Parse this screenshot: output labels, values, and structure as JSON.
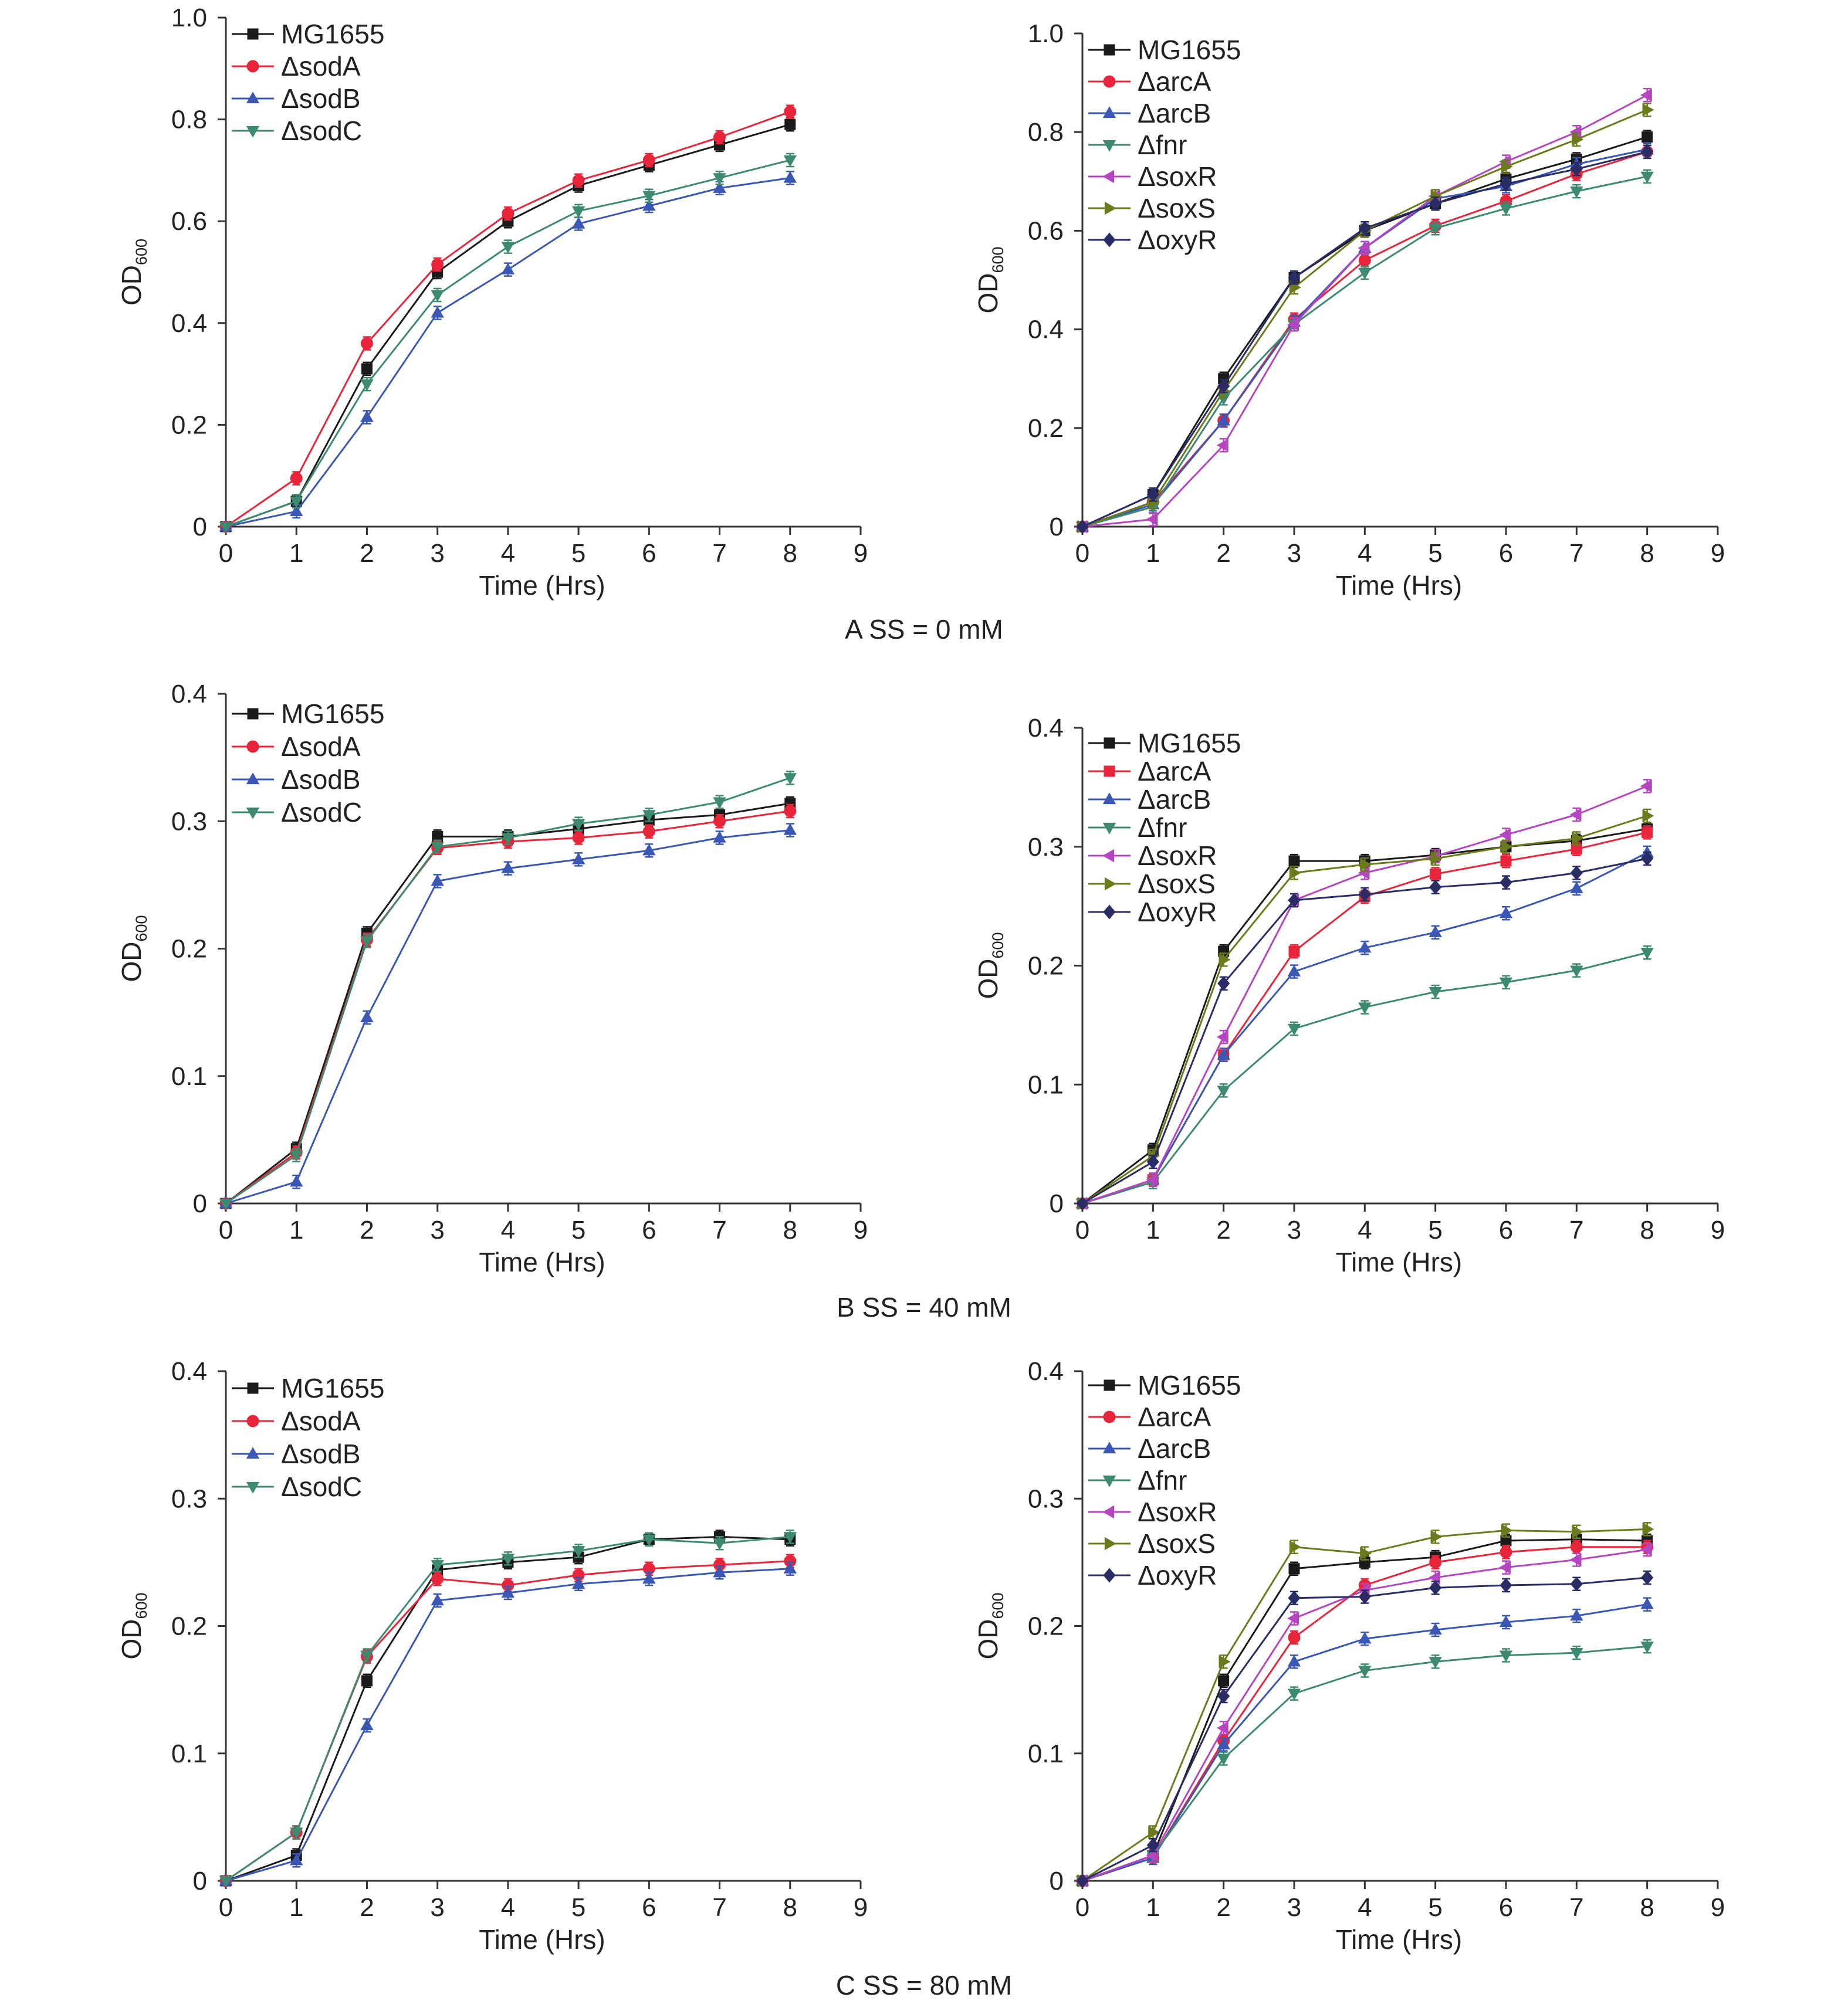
{
  "figure": {
    "captions": [
      "A SS = 0 mM",
      "B SS = 40 mM",
      "C SS = 80 mM"
    ]
  },
  "axes_text": {
    "xlabel": "Time (Hrs)",
    "ylabel_main": "OD",
    "ylabel_sub": "600"
  },
  "chart_data": [
    {
      "id": "A-left",
      "type": "line",
      "panel": "A",
      "xlabel": "Time (Hrs)",
      "ylabel": "OD600",
      "xlim": [
        0,
        9
      ],
      "ylim": [
        0,
        1.0
      ],
      "xticks": [
        0,
        1,
        2,
        3,
        4,
        5,
        6,
        7,
        8,
        9
      ],
      "yticks": [
        0,
        0.2,
        0.4,
        0.6,
        0.8,
        1.0
      ],
      "ytick_labels": [
        "0",
        "0.2",
        "0.4",
        "0.6",
        "0.8",
        "1.0"
      ],
      "grid": false,
      "legend": "top-left",
      "x": [
        0,
        1,
        2,
        3,
        4,
        5,
        6,
        7,
        8
      ],
      "series": [
        {
          "name": "MG1655",
          "color": "#1a1a1a",
          "marker": "square",
          "values": [
            0,
            0.05,
            0.31,
            0.5,
            0.6,
            0.67,
            0.71,
            0.75,
            0.79
          ]
        },
        {
          "name": "ΔsodA",
          "color": "#e8253a",
          "marker": "circle",
          "values": [
            0,
            0.095,
            0.36,
            0.515,
            0.615,
            0.68,
            0.72,
            0.765,
            0.815
          ]
        },
        {
          "name": "ΔsodB",
          "color": "#3a57b5",
          "marker": "triangle-up",
          "values": [
            0,
            0.03,
            0.215,
            0.42,
            0.505,
            0.595,
            0.63,
            0.665,
            0.685
          ]
        },
        {
          "name": "ΔsodC",
          "color": "#3e8a6e",
          "marker": "triangle-down",
          "values": [
            0,
            0.05,
            0.28,
            0.455,
            0.55,
            0.62,
            0.65,
            0.685,
            0.72
          ]
        }
      ]
    },
    {
      "id": "A-right",
      "type": "line",
      "panel": "A",
      "xlabel": "Time (Hrs)",
      "ylabel": "OD600",
      "xlim": [
        0,
        9
      ],
      "ylim": [
        0,
        1.0
      ],
      "xticks": [
        0,
        1,
        2,
        3,
        4,
        5,
        6,
        7,
        8,
        9
      ],
      "yticks": [
        0,
        0.2,
        0.4,
        0.6,
        0.8,
        1.0
      ],
      "ytick_labels": [
        "0",
        "0.2",
        "0.4",
        "0.6",
        "0.8",
        "1.0"
      ],
      "grid": false,
      "legend": "top-left",
      "x": [
        0,
        1,
        2,
        3,
        4,
        5,
        6,
        7,
        8
      ],
      "series": [
        {
          "name": "MG1655",
          "color": "#1a1a1a",
          "marker": "square",
          "values": [
            0,
            0.065,
            0.3,
            0.505,
            0.6,
            0.655,
            0.705,
            0.745,
            0.79
          ]
        },
        {
          "name": "ΔarcA",
          "color": "#e8253a",
          "marker": "circle",
          "values": [
            0,
            0.05,
            0.215,
            0.42,
            0.54,
            0.61,
            0.66,
            0.715,
            0.76
          ]
        },
        {
          "name": "ΔarcB",
          "color": "#3a57b5",
          "marker": "triangle-up",
          "values": [
            0,
            0.045,
            0.215,
            0.415,
            0.565,
            0.665,
            0.69,
            0.735,
            0.765
          ]
        },
        {
          "name": "Δfnr",
          "color": "#3e8a6e",
          "marker": "triangle-down",
          "values": [
            0,
            0.04,
            0.26,
            0.41,
            0.515,
            0.605,
            0.645,
            0.68,
            0.71
          ]
        },
        {
          "name": "ΔsoxR",
          "color": "#b545c0",
          "marker": "triangle-left",
          "values": [
            0,
            0.015,
            0.165,
            0.41,
            0.565,
            0.67,
            0.74,
            0.8,
            0.875
          ]
        },
        {
          "name": "ΔsoxS",
          "color": "#6d7a1c",
          "marker": "triangle-right",
          "values": [
            0,
            0.05,
            0.275,
            0.485,
            0.6,
            0.67,
            0.73,
            0.785,
            0.845
          ]
        },
        {
          "name": "ΔoxyR",
          "color": "#2a2c66",
          "marker": "diamond",
          "values": [
            0,
            0.065,
            0.285,
            0.505,
            0.605,
            0.655,
            0.695,
            0.725,
            0.76
          ]
        }
      ]
    },
    {
      "id": "B-left",
      "type": "line",
      "panel": "B",
      "xlabel": "Time (Hrs)",
      "ylabel": "OD600",
      "xlim": [
        0,
        9
      ],
      "ylim": [
        0,
        0.4
      ],
      "xticks": [
        0,
        1,
        2,
        3,
        4,
        5,
        6,
        7,
        8,
        9
      ],
      "yticks": [
        0,
        0.1,
        0.2,
        0.3,
        0.4
      ],
      "ytick_labels": [
        "0",
        "0.1",
        "0.2",
        "0.3",
        "0.4"
      ],
      "grid": false,
      "legend": "top-left",
      "x": [
        0,
        1,
        2,
        3,
        4,
        5,
        6,
        7,
        8
      ],
      "series": [
        {
          "name": "MG1655",
          "color": "#1a1a1a",
          "marker": "square",
          "values": [
            0,
            0.043,
            0.212,
            0.288,
            0.288,
            0.294,
            0.301,
            0.305,
            0.314
          ]
        },
        {
          "name": "ΔsodA",
          "color": "#e8253a",
          "marker": "circle",
          "values": [
            0,
            0.04,
            0.207,
            0.279,
            0.284,
            0.287,
            0.292,
            0.3,
            0.308
          ]
        },
        {
          "name": "ΔsodB",
          "color": "#3a57b5",
          "marker": "triangle-up",
          "values": [
            0,
            0.017,
            0.146,
            0.253,
            0.263,
            0.27,
            0.277,
            0.287,
            0.293
          ]
        },
        {
          "name": "ΔsodC",
          "color": "#3e8a6e",
          "marker": "triangle-down",
          "values": [
            0,
            0.038,
            0.206,
            0.28,
            0.287,
            0.298,
            0.305,
            0.315,
            0.334
          ]
        }
      ]
    },
    {
      "id": "B-right",
      "type": "line",
      "panel": "B",
      "xlabel": "Time (Hrs)",
      "ylabel": "OD600",
      "xlim": [
        0,
        9
      ],
      "ylim": [
        0,
        0.4
      ],
      "xticks": [
        0,
        1,
        2,
        3,
        4,
        5,
        6,
        7,
        8,
        9
      ],
      "yticks": [
        0,
        0.1,
        0.2,
        0.3,
        0.4
      ],
      "ytick_labels": [
        "0",
        "0.1",
        "0.2",
        "0.3",
        "0.4"
      ],
      "grid": false,
      "legend": "top-left",
      "x": [
        0,
        1,
        2,
        3,
        4,
        5,
        6,
        7,
        8
      ],
      "series": [
        {
          "name": "MG1655",
          "color": "#1a1a1a",
          "marker": "square",
          "values": [
            0,
            0.045,
            0.212,
            0.288,
            0.288,
            0.293,
            0.3,
            0.305,
            0.315
          ]
        },
        {
          "name": "ΔarcA",
          "color": "#e8253a",
          "marker": "square",
          "values": [
            0,
            0.02,
            0.125,
            0.212,
            0.258,
            0.277,
            0.288,
            0.298,
            0.312
          ]
        },
        {
          "name": "ΔarcB",
          "color": "#3a57b5",
          "marker": "triangle-up",
          "values": [
            0,
            0.02,
            0.125,
            0.195,
            0.215,
            0.228,
            0.244,
            0.265,
            0.295
          ]
        },
        {
          "name": "Δfnr",
          "color": "#3e8a6e",
          "marker": "triangle-down",
          "values": [
            0,
            0.018,
            0.095,
            0.147,
            0.165,
            0.178,
            0.186,
            0.196,
            0.211
          ]
        },
        {
          "name": "ΔsoxR",
          "color": "#b545c0",
          "marker": "triangle-left",
          "values": [
            0,
            0.02,
            0.14,
            0.255,
            0.278,
            0.292,
            0.31,
            0.327,
            0.351
          ]
        },
        {
          "name": "ΔsoxS",
          "color": "#6d7a1c",
          "marker": "triangle-right",
          "values": [
            0,
            0.04,
            0.205,
            0.278,
            0.285,
            0.29,
            0.3,
            0.307,
            0.326
          ]
        },
        {
          "name": "ΔoxyR",
          "color": "#2a2c66",
          "marker": "diamond",
          "values": [
            0,
            0.035,
            0.185,
            0.255,
            0.26,
            0.266,
            0.27,
            0.278,
            0.29
          ]
        }
      ]
    },
    {
      "id": "C-left",
      "type": "line",
      "panel": "C",
      "xlabel": "Time (Hrs)",
      "ylabel": "OD600",
      "xlim": [
        0,
        9
      ],
      "ylim": [
        0,
        0.4
      ],
      "xticks": [
        0,
        1,
        2,
        3,
        4,
        5,
        6,
        7,
        8,
        9
      ],
      "yticks": [
        0,
        0.1,
        0.2,
        0.3,
        0.4
      ],
      "ytick_labels": [
        "0",
        "0.1",
        "0.2",
        "0.3",
        "0.4"
      ],
      "grid": false,
      "legend": "top-left",
      "x": [
        0,
        1,
        2,
        3,
        4,
        5,
        6,
        7,
        8
      ],
      "series": [
        {
          "name": "MG1655",
          "color": "#1a1a1a",
          "marker": "square",
          "values": [
            0,
            0.02,
            0.157,
            0.244,
            0.25,
            0.254,
            0.268,
            0.27,
            0.268
          ]
        },
        {
          "name": "ΔsodA",
          "color": "#e8253a",
          "marker": "circle",
          "values": [
            0,
            0.038,
            0.176,
            0.237,
            0.232,
            0.24,
            0.245,
            0.248,
            0.251
          ]
        },
        {
          "name": "ΔsodB",
          "color": "#3a57b5",
          "marker": "triangle-up",
          "values": [
            0,
            0.016,
            0.122,
            0.22,
            0.226,
            0.233,
            0.237,
            0.242,
            0.245
          ]
        },
        {
          "name": "ΔsodC",
          "color": "#3e8a6e",
          "marker": "triangle-down",
          "values": [
            0,
            0.038,
            0.177,
            0.248,
            0.253,
            0.259,
            0.268,
            0.265,
            0.27
          ]
        }
      ]
    },
    {
      "id": "C-right",
      "type": "line",
      "panel": "C",
      "xlabel": "Time (Hrs)",
      "ylabel": "OD600",
      "xlim": [
        0,
        9
      ],
      "ylim": [
        0,
        0.4
      ],
      "xticks": [
        0,
        1,
        2,
        3,
        4,
        5,
        6,
        7,
        8,
        9
      ],
      "yticks": [
        0,
        0.1,
        0.2,
        0.3,
        0.4
      ],
      "ytick_labels": [
        "0",
        "0.1",
        "0.2",
        "0.3",
        "0.4"
      ],
      "grid": false,
      "legend": "top-left",
      "x": [
        0,
        1,
        2,
        3,
        4,
        5,
        6,
        7,
        8
      ],
      "series": [
        {
          "name": "MG1655",
          "color": "#1a1a1a",
          "marker": "square",
          "values": [
            0,
            0.02,
            0.157,
            0.245,
            0.25,
            0.254,
            0.267,
            0.268,
            0.267
          ]
        },
        {
          "name": "ΔarcA",
          "color": "#e8253a",
          "marker": "circle",
          "values": [
            0,
            0.018,
            0.11,
            0.191,
            0.232,
            0.25,
            0.258,
            0.262,
            0.262
          ]
        },
        {
          "name": "ΔarcB",
          "color": "#3a57b5",
          "marker": "triangle-up",
          "values": [
            0,
            0.018,
            0.107,
            0.172,
            0.19,
            0.197,
            0.203,
            0.208,
            0.217
          ]
        },
        {
          "name": "Δfnr",
          "color": "#3e8a6e",
          "marker": "triangle-down",
          "values": [
            0,
            0.02,
            0.096,
            0.147,
            0.165,
            0.172,
            0.177,
            0.179,
            0.184
          ]
        },
        {
          "name": "ΔsoxR",
          "color": "#b545c0",
          "marker": "triangle-left",
          "values": [
            0,
            0.02,
            0.12,
            0.206,
            0.228,
            0.238,
            0.246,
            0.252,
            0.26
          ]
        },
        {
          "name": "ΔsoxS",
          "color": "#6d7a1c",
          "marker": "triangle-right",
          "values": [
            0,
            0.038,
            0.172,
            0.262,
            0.257,
            0.27,
            0.275,
            0.274,
            0.276
          ]
        },
        {
          "name": "ΔoxyR",
          "color": "#2a2c66",
          "marker": "diamond",
          "values": [
            0,
            0.028,
            0.145,
            0.222,
            0.223,
            0.23,
            0.232,
            0.233,
            0.238
          ]
        }
      ]
    }
  ]
}
